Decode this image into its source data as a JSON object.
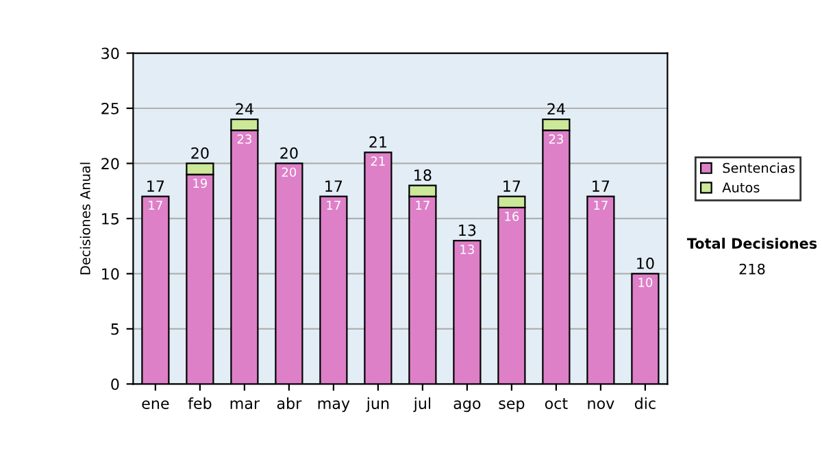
{
  "chart_data": {
    "type": "bar",
    "stacked": true,
    "ylabel": "Decisiones Anual",
    "categories": [
      "ene",
      "feb",
      "mar",
      "abr",
      "may",
      "jun",
      "jul",
      "ago",
      "sep",
      "oct",
      "nov",
      "dic"
    ],
    "series": [
      {
        "name": "Sentencias",
        "color": "#dd80c8",
        "values": [
          17,
          19,
          23,
          20,
          17,
          21,
          17,
          13,
          16,
          23,
          17,
          10
        ],
        "value_labels": [
          "17",
          "19",
          "23",
          "20",
          "17",
          "21",
          "17",
          "13",
          "16",
          "23",
          "17",
          "10"
        ]
      },
      {
        "name": "Autos",
        "color": "#cce899",
        "values": [
          null,
          1,
          1,
          null,
          null,
          null,
          1,
          null,
          1,
          1,
          null,
          null
        ]
      }
    ],
    "totals": [
      "17",
      "20",
      "24",
      "20",
      "17",
      "21",
      "18",
      "13",
      "17",
      "24",
      "17",
      "10"
    ],
    "ylim": [
      0,
      30
    ],
    "yticks": [
      0,
      5,
      10,
      15,
      20,
      25,
      30
    ],
    "grid": "y",
    "legend": "right",
    "annotations": [
      "Total Decisiones",
      "218"
    ]
  }
}
